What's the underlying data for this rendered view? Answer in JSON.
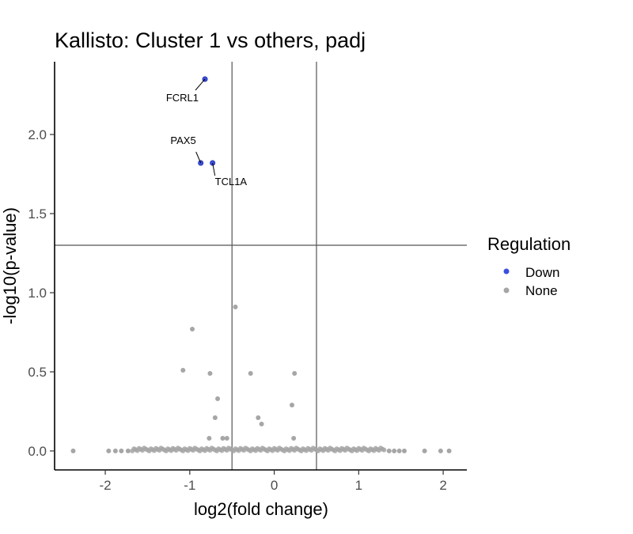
{
  "chart_data": {
    "type": "scatter",
    "title": "Kallisto: Cluster 1 vs others, padj",
    "xlabel": "log2(fold change)",
    "ylabel": "-log10(p-value)",
    "xlim": [
      -2.6,
      2.28
    ],
    "ylim": [
      -0.12,
      2.46
    ],
    "x_ticks": [
      -2,
      -1,
      0,
      1,
      2
    ],
    "y_ticks": [
      0.0,
      0.5,
      1.0,
      1.5,
      2.0
    ],
    "x_tick_labels": [
      "-2",
      "-1",
      "0",
      "1",
      "2"
    ],
    "y_tick_labels": [
      "0.0",
      "0.5",
      "1.0",
      "1.5",
      "2.0"
    ],
    "grid": false,
    "threshold_lines": {
      "x": [
        -0.5,
        0.5
      ],
      "y": [
        1.3
      ]
    },
    "legend": {
      "title": "Regulation",
      "position": "right",
      "entries": [
        {
          "label": "Down",
          "color": "#3a4fe0"
        },
        {
          "label": "None",
          "color": "#a6a6a6"
        }
      ]
    },
    "series": [
      {
        "name": "Down",
        "color": "#3a4fe0",
        "points": [
          {
            "x": -0.82,
            "y": 2.35,
            "label": "FCRL1"
          },
          {
            "x": -0.87,
            "y": 1.82,
            "label": "PAX5"
          },
          {
            "x": -0.73,
            "y": 1.82,
            "label": "TCL1A"
          }
        ]
      },
      {
        "name": "None",
        "color": "#a6a6a6",
        "points": [
          {
            "x": -0.46,
            "y": 0.91
          },
          {
            "x": -0.97,
            "y": 0.77
          },
          {
            "x": -1.08,
            "y": 0.51
          },
          {
            "x": -0.76,
            "y": 0.49
          },
          {
            "x": -0.28,
            "y": 0.49
          },
          {
            "x": 0.24,
            "y": 0.49
          },
          {
            "x": -0.67,
            "y": 0.33
          },
          {
            "x": 0.21,
            "y": 0.29
          },
          {
            "x": -0.7,
            "y": 0.21
          },
          {
            "x": -0.19,
            "y": 0.21
          },
          {
            "x": -0.15,
            "y": 0.17
          },
          {
            "x": -0.77,
            "y": 0.08
          },
          {
            "x": -0.61,
            "y": 0.08
          },
          {
            "x": -0.56,
            "y": 0.08
          },
          {
            "x": 0.23,
            "y": 0.08
          },
          {
            "x": -2.38,
            "y": 0.0
          },
          {
            "x": -1.96,
            "y": 0.0
          },
          {
            "x": -1.88,
            "y": 0.0
          },
          {
            "x": -1.81,
            "y": 0.0
          },
          {
            "x": -1.73,
            "y": 0.0
          },
          {
            "x": 1.36,
            "y": 0.0
          },
          {
            "x": 1.42,
            "y": 0.0
          },
          {
            "x": 1.48,
            "y": 0.0
          },
          {
            "x": 1.54,
            "y": 0.0
          },
          {
            "x": 1.78,
            "y": 0.0
          },
          {
            "x": 1.97,
            "y": 0.0
          },
          {
            "x": 2.07,
            "y": 0.0
          }
        ],
        "dense_band": {
          "x_range": [
            -1.68,
            1.3
          ],
          "y_range": [
            0.0,
            0.02
          ]
        }
      }
    ]
  }
}
